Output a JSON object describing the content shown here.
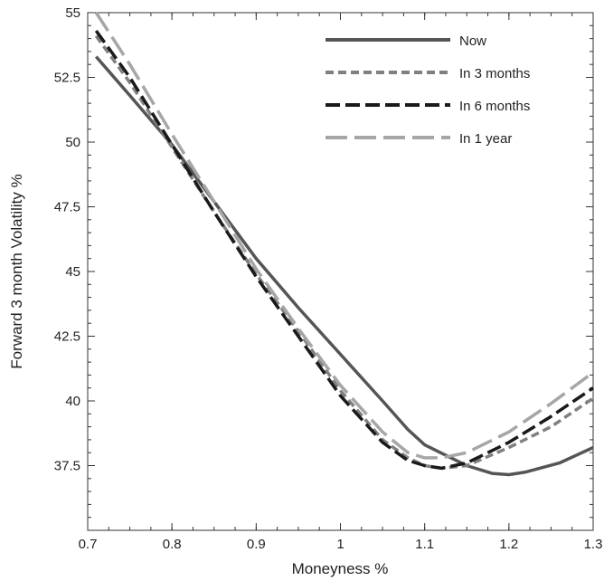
{
  "chart_data": {
    "type": "line",
    "title": "",
    "xlabel": "Moneyness %",
    "ylabel": "Forward 3 month Volatility %",
    "xlim": [
      0.7,
      1.3
    ],
    "ylim": [
      35,
      55
    ],
    "grid": false,
    "legend_position": "top-right",
    "x_ticks": [
      {
        "value": 0.7,
        "label": "0.7"
      },
      {
        "value": 0.8,
        "label": "0.8"
      },
      {
        "value": 0.9,
        "label": "0.9"
      },
      {
        "value": 1.0,
        "label": "1"
      },
      {
        "value": 1.1,
        "label": "1.1"
      },
      {
        "value": 1.2,
        "label": "1.2"
      },
      {
        "value": 1.3,
        "label": "1.3"
      }
    ],
    "y_ticks": [
      {
        "value": 37.5,
        "label": "37.5"
      },
      {
        "value": 40,
        "label": "40"
      },
      {
        "value": 42.5,
        "label": "42.5"
      },
      {
        "value": 45,
        "label": "45"
      },
      {
        "value": 47.5,
        "label": "47.5"
      },
      {
        "value": 50,
        "label": "50"
      },
      {
        "value": 52.5,
        "label": "52.5"
      },
      {
        "value": 55,
        "label": "55"
      }
    ],
    "series": [
      {
        "name": "Now",
        "color": "#555555",
        "dash": "solid",
        "x": [
          0.71,
          0.75,
          0.8,
          0.85,
          0.9,
          0.95,
          1.0,
          1.05,
          1.08,
          1.1,
          1.15,
          1.18,
          1.2,
          1.22,
          1.26,
          1.3
        ],
        "y": [
          53.3,
          51.8,
          49.9,
          47.7,
          45.5,
          43.6,
          41.8,
          40.0,
          38.9,
          38.3,
          37.5,
          37.2,
          37.15,
          37.25,
          37.6,
          38.2
        ]
      },
      {
        "name": "In 3 months",
        "color": "#808080",
        "dash": "short",
        "x": [
          0.71,
          0.75,
          0.8,
          0.85,
          0.9,
          0.95,
          1.0,
          1.05,
          1.08,
          1.1,
          1.12,
          1.15,
          1.2,
          1.25,
          1.3
        ],
        "y": [
          54.1,
          52.3,
          49.8,
          47.3,
          44.9,
          42.7,
          40.4,
          38.5,
          37.8,
          37.5,
          37.4,
          37.5,
          38.2,
          39.0,
          40.1
        ]
      },
      {
        "name": "In 6 months",
        "color": "#1a1a1a",
        "dash": "long",
        "x": [
          0.71,
          0.75,
          0.8,
          0.85,
          0.9,
          0.95,
          1.0,
          1.05,
          1.08,
          1.1,
          1.12,
          1.15,
          1.2,
          1.25,
          1.3
        ],
        "y": [
          54.3,
          52.5,
          49.9,
          47.3,
          44.8,
          42.5,
          40.2,
          38.4,
          37.7,
          37.5,
          37.4,
          37.6,
          38.4,
          39.4,
          40.5
        ]
      },
      {
        "name": "In 1 year",
        "color": "#a6a6a6",
        "dash": "longer",
        "x": [
          0.71,
          0.75,
          0.8,
          0.85,
          0.9,
          0.95,
          1.0,
          1.05,
          1.08,
          1.1,
          1.12,
          1.15,
          1.2,
          1.25,
          1.3
        ],
        "y": [
          55.0,
          53.0,
          50.3,
          47.7,
          45.1,
          42.8,
          40.6,
          38.8,
          38.0,
          37.8,
          37.8,
          38.0,
          38.8,
          39.9,
          41.1
        ]
      }
    ]
  }
}
